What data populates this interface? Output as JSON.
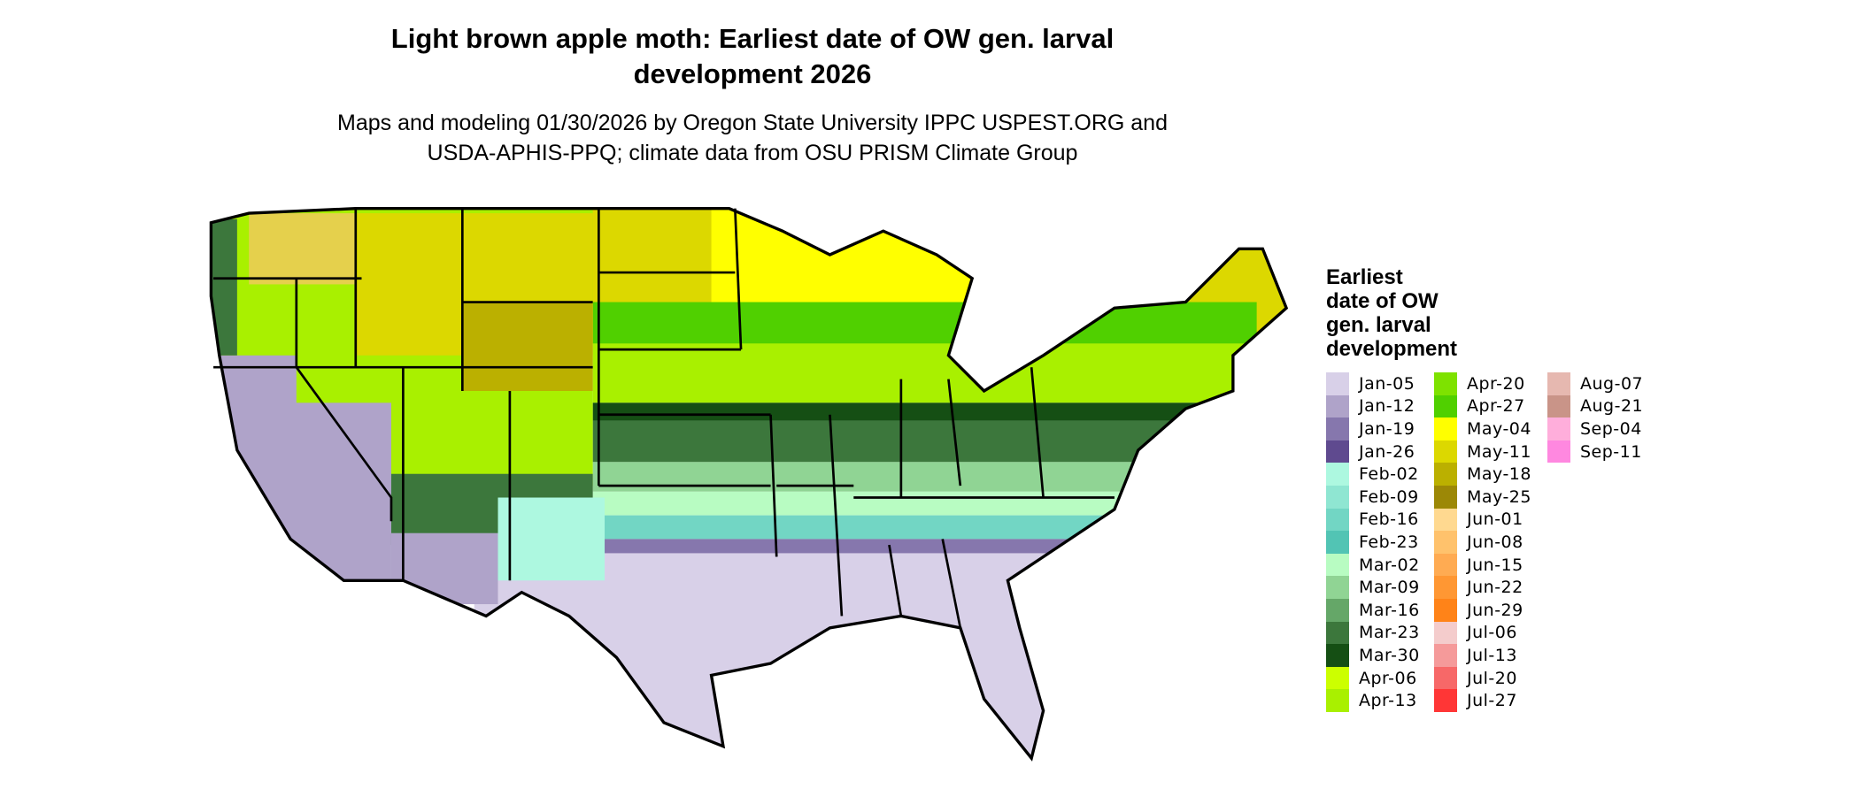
{
  "title": "Light brown apple moth: Earliest date of OW gen. larval development 2026",
  "title_line1": "Light brown apple moth: Earliest date of OW gen. larval",
  "title_line2": "development 2026",
  "subtitle_line1": "Maps and modeling 01/30/2026 by Oregon State University IPPC USPEST.ORG and",
  "subtitle_line2": "USDA-APHIS-PPQ; climate data from OSU PRISM Climate Group",
  "legend": {
    "title_lines": [
      "Earliest",
      "date of OW",
      "gen. larval",
      "development"
    ],
    "items": [
      {
        "label": "Jan-05",
        "color": "#d8d0e8"
      },
      {
        "label": "Jan-12",
        "color": "#afa3c9"
      },
      {
        "label": "Jan-19",
        "color": "#8677ad"
      },
      {
        "label": "Jan-26",
        "color": "#5f4a8f"
      },
      {
        "label": "Feb-02",
        "color": "#adf8e0"
      },
      {
        "label": "Feb-09",
        "color": "#8fe6d2"
      },
      {
        "label": "Feb-16",
        "color": "#72d6c4"
      },
      {
        "label": "Feb-23",
        "color": "#52c4b4"
      },
      {
        "label": "Mar-02",
        "color": "#b8fcc2"
      },
      {
        "label": "Mar-09",
        "color": "#90d494"
      },
      {
        "label": "Mar-16",
        "color": "#65a768"
      },
      {
        "label": "Mar-23",
        "color": "#3c773c"
      },
      {
        "label": "Mar-30",
        "color": "#154f14"
      },
      {
        "label": "Apr-06",
        "color": "#ccff00"
      },
      {
        "label": "Apr-13",
        "color": "#a9f000"
      },
      {
        "label": "Apr-20",
        "color": "#7ee200"
      },
      {
        "label": "Apr-27",
        "color": "#50d000"
      },
      {
        "label": "May-04",
        "color": "#ffff00"
      },
      {
        "label": "May-11",
        "color": "#dcd800"
      },
      {
        "label": "May-18",
        "color": "#bbb000"
      },
      {
        "label": "May-25",
        "color": "#9c8806"
      },
      {
        "label": "Jun-01",
        "color": "#ffd990"
      },
      {
        "label": "Jun-08",
        "color": "#ffc26c"
      },
      {
        "label": "Jun-15",
        "color": "#ffab52"
      },
      {
        "label": "Jun-22",
        "color": "#ff9733"
      },
      {
        "label": "Jun-29",
        "color": "#ff8318"
      },
      {
        "label": "Jul-06",
        "color": "#f4cccc"
      },
      {
        "label": "Jul-13",
        "color": "#f59a9a"
      },
      {
        "label": "Jul-20",
        "color": "#f76868"
      },
      {
        "label": "Jul-27",
        "color": "#ff3636"
      },
      {
        "label": "Aug-07",
        "color": "#e6b8b0"
      },
      {
        "label": "Aug-21",
        "color": "#c99488"
      },
      {
        "label": "Sep-04",
        "color": "#ffaedb"
      },
      {
        "label": "Sep-11",
        "color": "#ff88e0"
      }
    ]
  }
}
